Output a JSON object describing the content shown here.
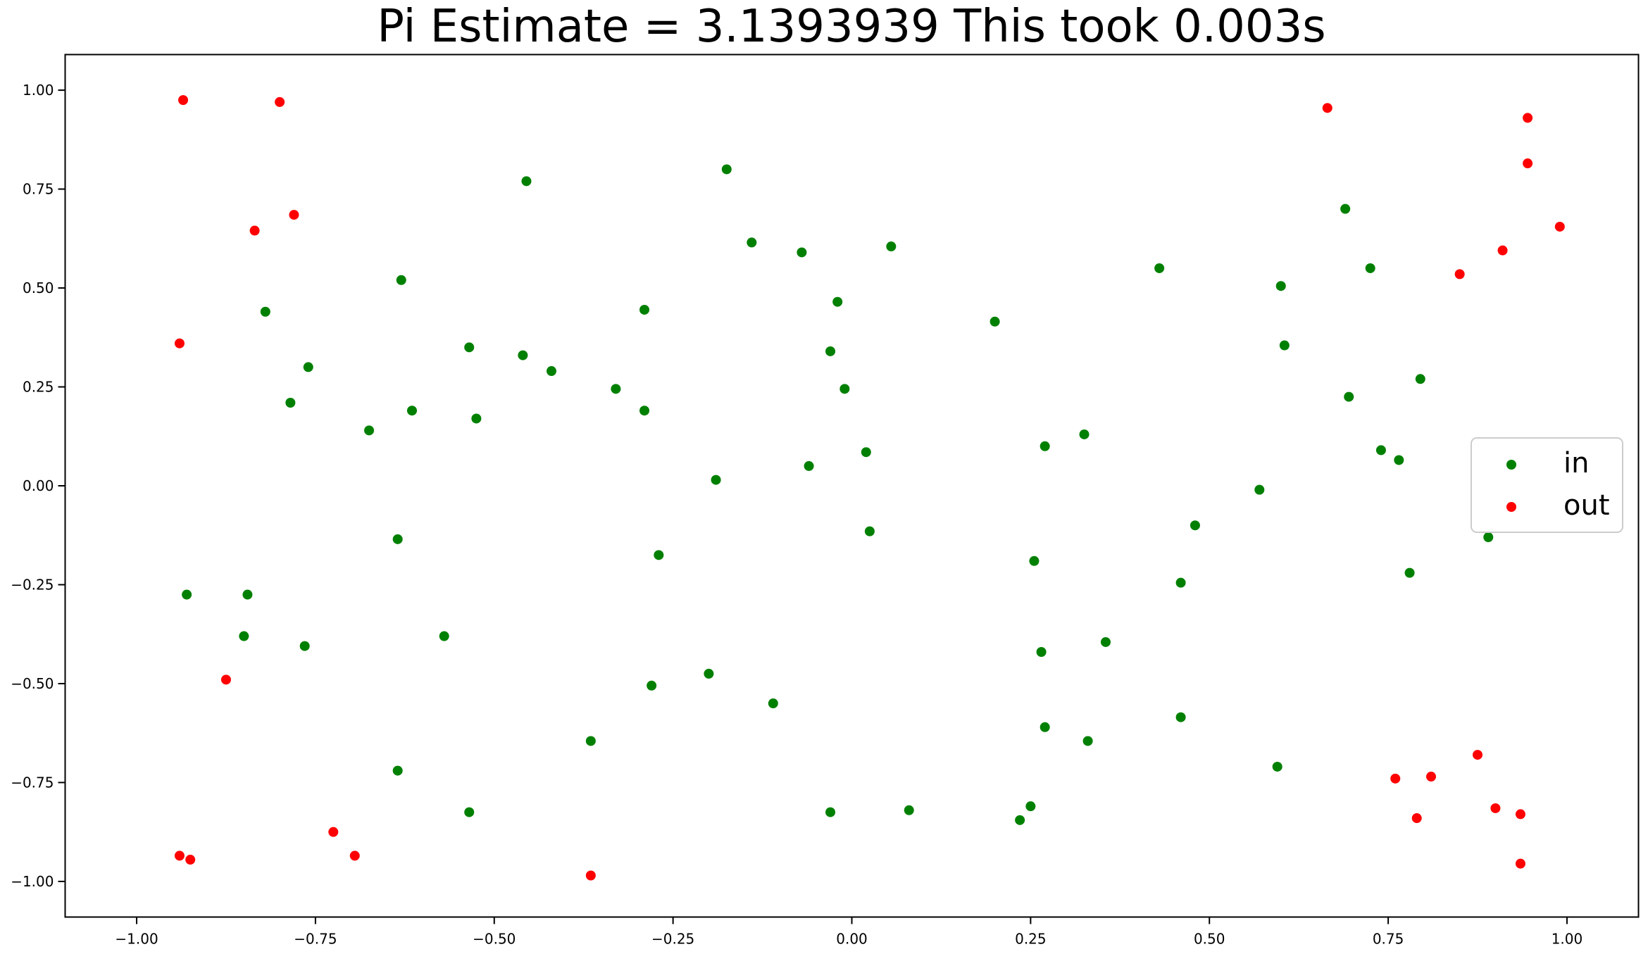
{
  "chart_data": {
    "type": "scatter",
    "title": "Pi Estimate = 3.1393939 This took 0.003s",
    "xlabel": "",
    "ylabel": "",
    "xlim": [
      -1.1,
      1.1
    ],
    "ylim": [
      -1.09,
      1.09
    ],
    "xticks": [
      -1.0,
      -0.75,
      -0.5,
      -0.25,
      0.0,
      0.25,
      0.5,
      0.75,
      1.0
    ],
    "yticks": [
      -1.0,
      -0.75,
      -0.5,
      -0.25,
      0.0,
      0.25,
      0.5,
      0.75,
      1.0
    ],
    "xtick_labels": [
      "−1.00",
      "−0.75",
      "−0.50",
      "−0.25",
      "0.00",
      "0.25",
      "0.50",
      "0.75",
      "1.00"
    ],
    "ytick_labels": [
      "−1.00",
      "−0.75",
      "−0.50",
      "−0.25",
      "0.00",
      "0.25",
      "0.50",
      "0.75",
      "1.00"
    ],
    "grid": false,
    "legend_position": "center-right",
    "series": [
      {
        "name": "in",
        "color": "#008000",
        "points": [
          [
            -0.82,
            0.44
          ],
          [
            -0.76,
            0.3
          ],
          [
            -0.785,
            0.21
          ],
          [
            -0.675,
            0.14
          ],
          [
            -0.63,
            0.52
          ],
          [
            -0.615,
            0.19
          ],
          [
            -0.535,
            0.35
          ],
          [
            -0.525,
            0.17
          ],
          [
            -0.455,
            0.77
          ],
          [
            -0.46,
            0.33
          ],
          [
            -0.42,
            0.29
          ],
          [
            -0.33,
            0.245
          ],
          [
            -0.29,
            0.445
          ],
          [
            -0.29,
            0.19
          ],
          [
            -0.175,
            0.8
          ],
          [
            -0.14,
            0.615
          ],
          [
            -0.07,
            0.59
          ],
          [
            -0.02,
            0.465
          ],
          [
            -0.03,
            0.34
          ],
          [
            -0.01,
            0.245
          ],
          [
            0.055,
            0.605
          ],
          [
            0.2,
            0.415
          ],
          [
            -0.19,
            0.015
          ],
          [
            -0.06,
            0.05
          ],
          [
            0.02,
            0.085
          ],
          [
            0.025,
            -0.115
          ],
          [
            0.27,
            0.1
          ],
          [
            0.325,
            0.13
          ],
          [
            0.43,
            0.55
          ],
          [
            -0.93,
            -0.275
          ],
          [
            -0.845,
            -0.275
          ],
          [
            -0.85,
            -0.38
          ],
          [
            -0.765,
            -0.405
          ],
          [
            -0.635,
            -0.135
          ],
          [
            -0.57,
            -0.38
          ],
          [
            -0.27,
            -0.175
          ],
          [
            -0.28,
            -0.505
          ],
          [
            -0.2,
            -0.475
          ],
          [
            -0.11,
            -0.55
          ],
          [
            -0.365,
            -0.645
          ],
          [
            -0.635,
            -0.72
          ],
          [
            -0.535,
            -0.825
          ],
          [
            -0.03,
            -0.825
          ],
          [
            0.08,
            -0.82
          ],
          [
            0.235,
            -0.845
          ],
          [
            0.25,
            -0.81
          ],
          [
            0.255,
            -0.19
          ],
          [
            0.265,
            -0.42
          ],
          [
            0.27,
            -0.61
          ],
          [
            0.33,
            -0.645
          ],
          [
            0.355,
            -0.395
          ],
          [
            0.46,
            -0.245
          ],
          [
            0.48,
            -0.1
          ],
          [
            0.46,
            -0.585
          ],
          [
            0.57,
            -0.01
          ],
          [
            0.595,
            -0.71
          ],
          [
            0.6,
            0.505
          ],
          [
            0.605,
            0.355
          ],
          [
            0.69,
            0.7
          ],
          [
            0.695,
            0.225
          ],
          [
            0.725,
            0.55
          ],
          [
            0.74,
            0.09
          ],
          [
            0.765,
            0.065
          ],
          [
            0.78,
            -0.22
          ],
          [
            0.795,
            0.27
          ],
          [
            0.89,
            -0.13
          ]
        ]
      },
      {
        "name": "out",
        "color": "#ff0000",
        "points": [
          [
            -0.935,
            0.975
          ],
          [
            -0.8,
            0.97
          ],
          [
            -0.835,
            0.645
          ],
          [
            -0.78,
            0.685
          ],
          [
            -0.94,
            0.36
          ],
          [
            -0.875,
            -0.49
          ],
          [
            -0.94,
            -0.935
          ],
          [
            -0.925,
            -0.945
          ],
          [
            -0.725,
            -0.875
          ],
          [
            -0.695,
            -0.935
          ],
          [
            -0.365,
            -0.985
          ],
          [
            0.665,
            0.955
          ],
          [
            0.945,
            0.93
          ],
          [
            0.945,
            0.815
          ],
          [
            0.99,
            0.655
          ],
          [
            0.91,
            0.595
          ],
          [
            0.85,
            0.535
          ],
          [
            0.76,
            -0.74
          ],
          [
            0.81,
            -0.735
          ],
          [
            0.875,
            -0.68
          ],
          [
            0.79,
            -0.84
          ],
          [
            0.9,
            -0.815
          ],
          [
            0.935,
            -0.83
          ],
          [
            0.935,
            -0.955
          ]
        ]
      }
    ]
  }
}
